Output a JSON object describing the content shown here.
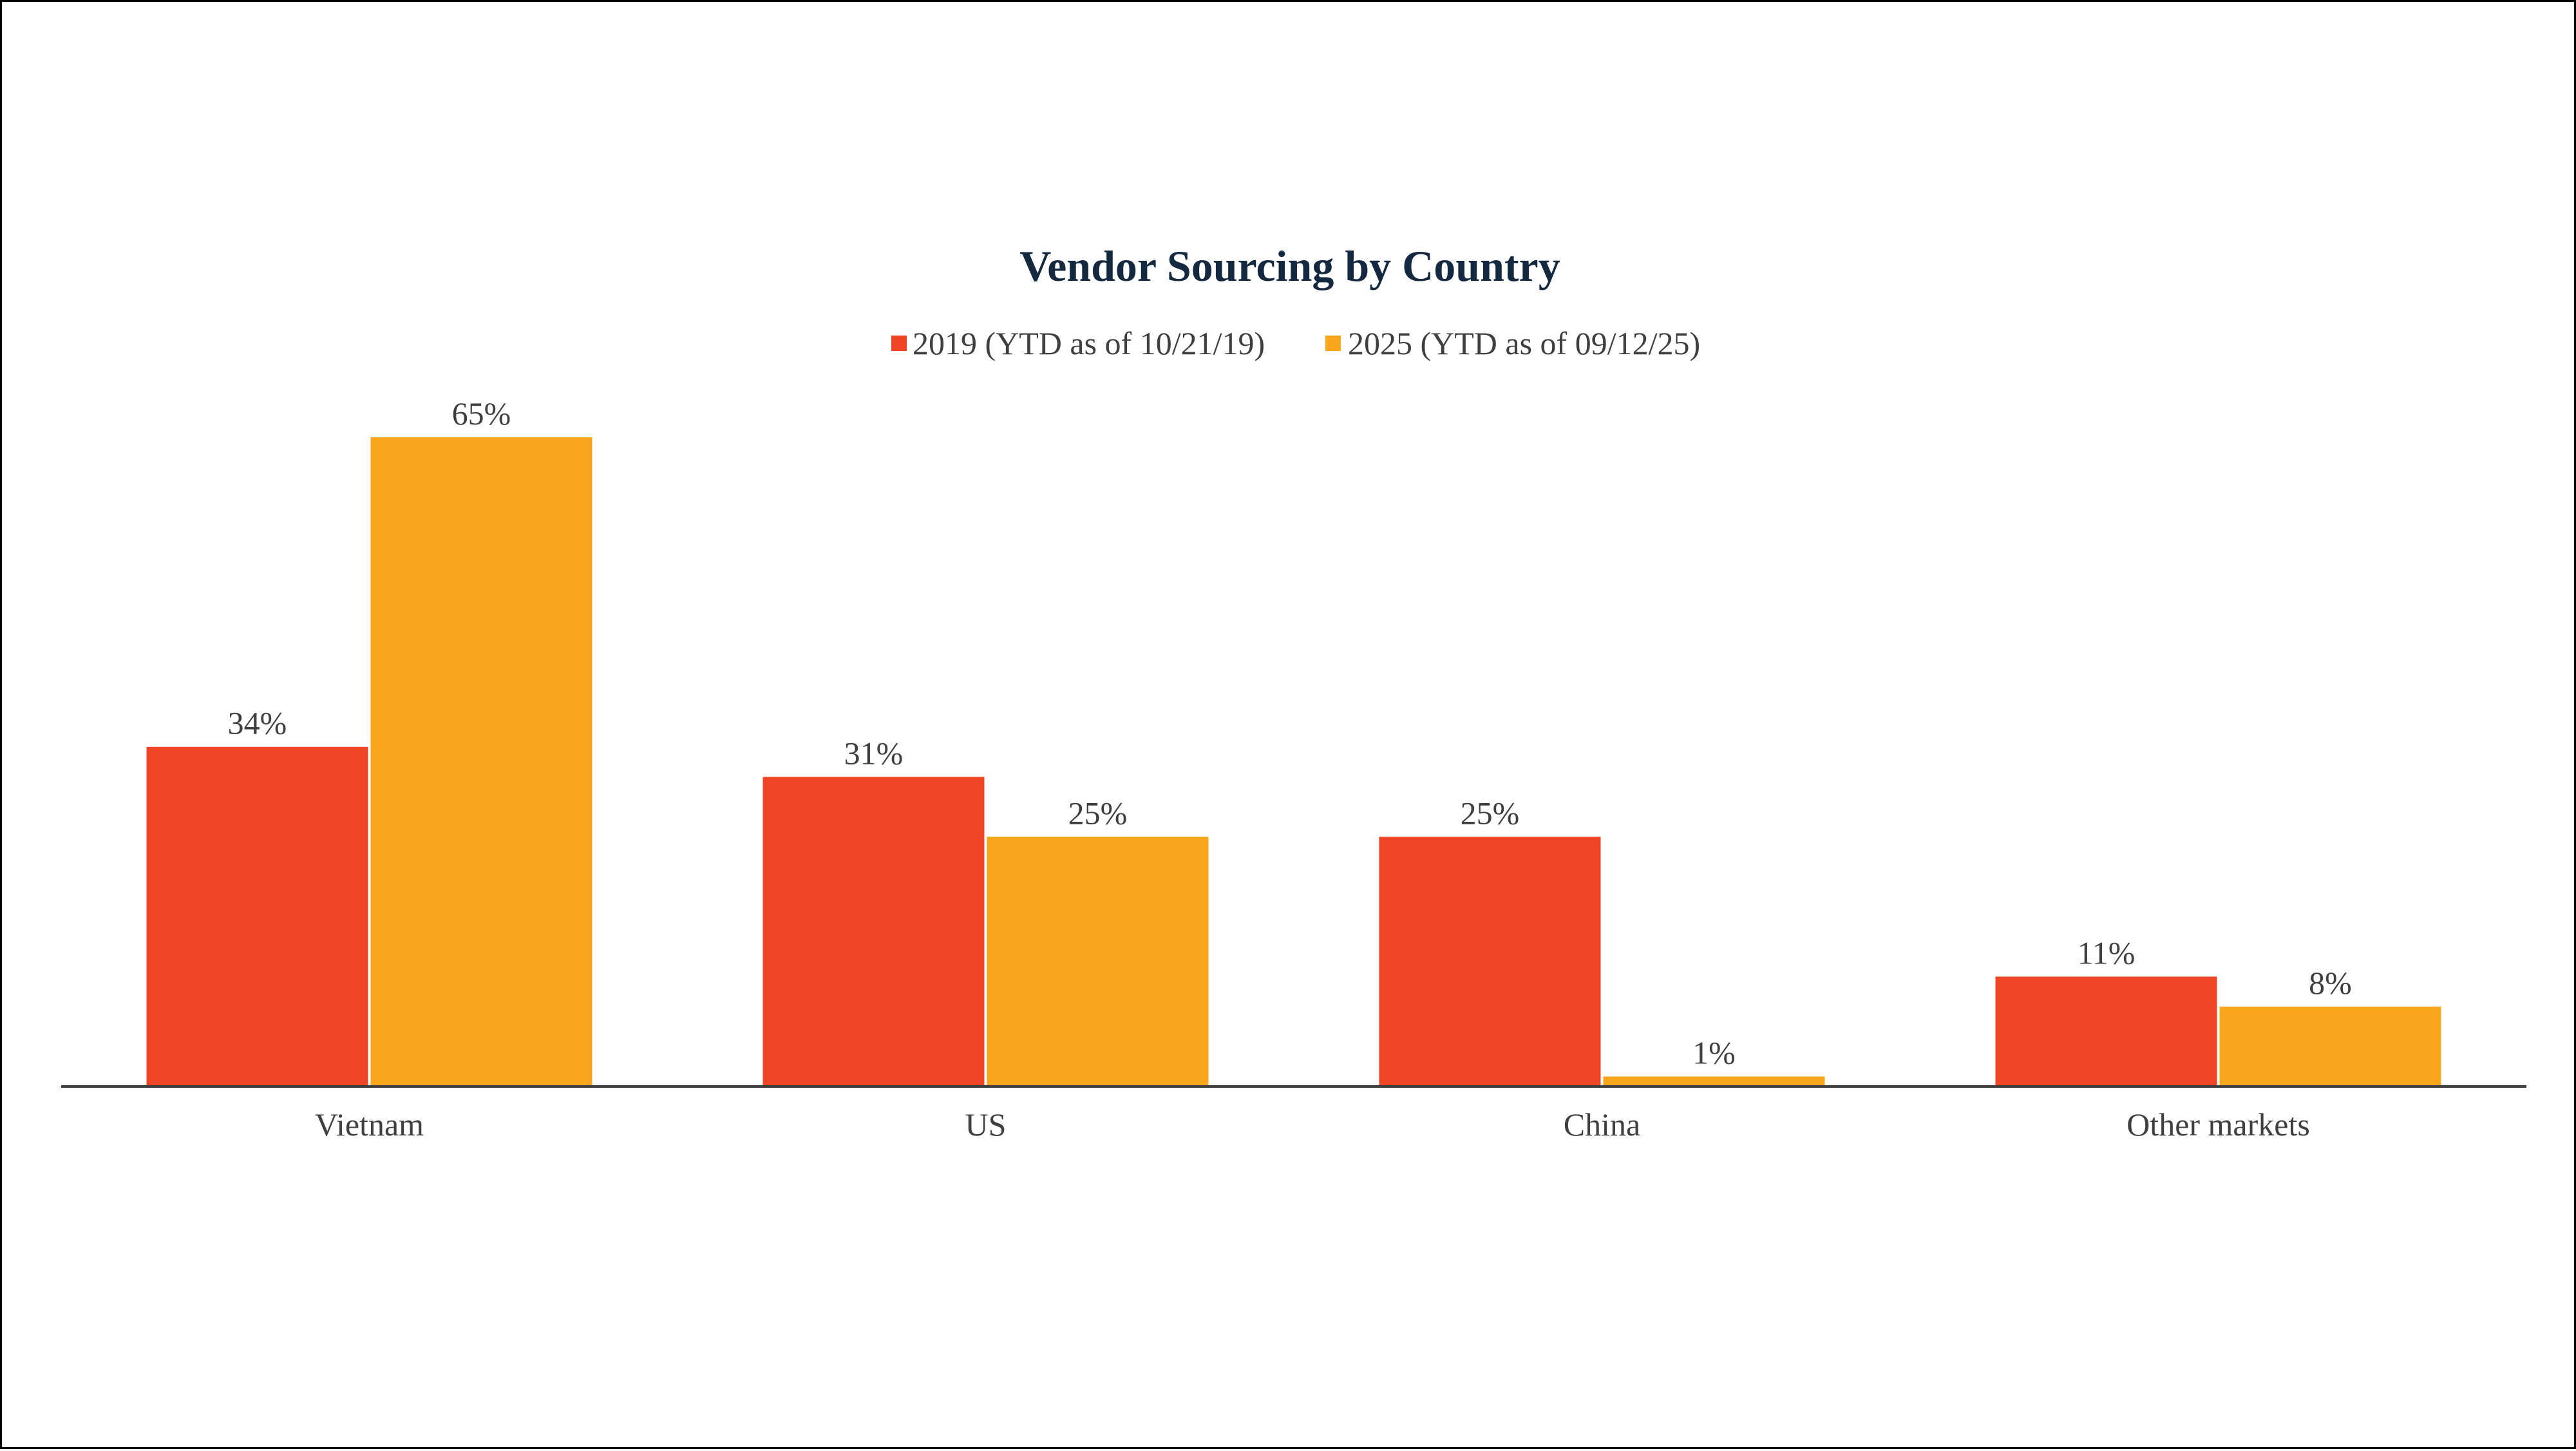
{
  "chart_data": {
    "type": "bar",
    "title": "Vendor Sourcing by Country",
    "xlabel": "",
    "ylabel": "",
    "categories": [
      "Vietnam",
      "US",
      "China",
      "Other markets"
    ],
    "series": [
      {
        "name": "2019 (YTD as of 10/21/19)",
        "values": [
          34,
          31,
          25,
          11
        ],
        "labels": [
          "34%",
          "31%",
          "25%",
          "11%"
        ],
        "color": "#ef4527"
      },
      {
        "name": "2025 (YTD as of 09/12/25)",
        "values": [
          65,
          25,
          1,
          8
        ],
        "labels": [
          "65%",
          "25%",
          "1%",
          "8%"
        ],
        "color": "#f8a71c"
      }
    ],
    "ylim": [
      0,
      65
    ],
    "grid": false,
    "y_axis_visible": false,
    "legend_position": "top-center",
    "title_color": "#14283f",
    "axis_color": "#3f3f3f"
  }
}
